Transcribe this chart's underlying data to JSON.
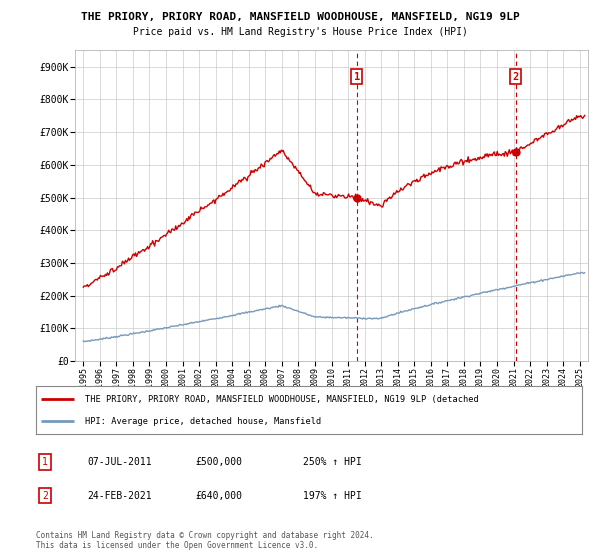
{
  "title1": "THE PRIORY, PRIORY ROAD, MANSFIELD WOODHOUSE, MANSFIELD, NG19 9LP",
  "title2": "Price paid vs. HM Land Registry's House Price Index (HPI)",
  "ylabel_ticks": [
    "£0",
    "£100K",
    "£200K",
    "£300K",
    "£400K",
    "£500K",
    "£600K",
    "£700K",
    "£800K",
    "£900K"
  ],
  "ytick_vals": [
    0,
    100000,
    200000,
    300000,
    400000,
    500000,
    600000,
    700000,
    800000,
    900000
  ],
  "xlim": [
    1994.5,
    2025.5
  ],
  "ylim": [
    0,
    950000
  ],
  "hpi_color": "#7799bb",
  "price_color": "#cc0000",
  "marker1_year": 2011.52,
  "marker2_year": 2021.13,
  "marker1_price": 500000,
  "marker2_price": 640000,
  "legend_text1": "THE PRIORY, PRIORY ROAD, MANSFIELD WOODHOUSE, MANSFIELD, NG19 9LP (detached",
  "legend_text2": "HPI: Average price, detached house, Mansfield",
  "note1_label": "1",
  "note1_date": "07-JUL-2011",
  "note1_price": "£500,000",
  "note1_hpi": "250% ↑ HPI",
  "note2_label": "2",
  "note2_date": "24-FEB-2021",
  "note2_price": "£640,000",
  "note2_hpi": "197% ↑ HPI",
  "footnote": "Contains HM Land Registry data © Crown copyright and database right 2024.\nThis data is licensed under the Open Government Licence v3.0.",
  "bg_color": "#ffffff",
  "grid_color": "#cccccc"
}
